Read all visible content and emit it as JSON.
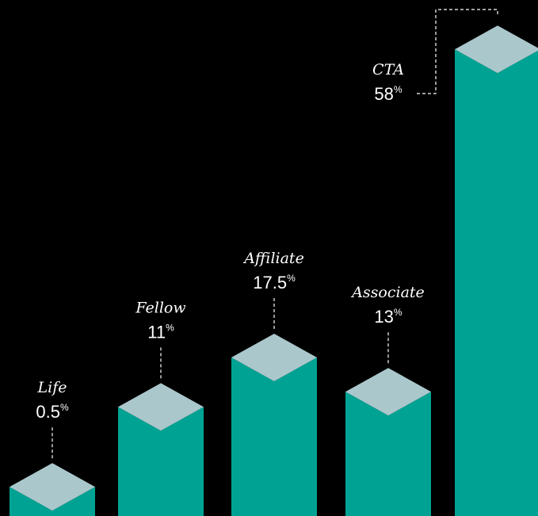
{
  "chart_data": {
    "type": "bar",
    "style": "isometric-3d",
    "title": "",
    "categories": [
      "Life",
      "Fellow",
      "Affiliate",
      "Associate",
      "CTA"
    ],
    "values": [
      0.5,
      11,
      17.5,
      13,
      58
    ],
    "value_labels": [
      "0.5",
      "11",
      "17.5",
      "13",
      "58"
    ],
    "unit": "%",
    "colors": {
      "background": "#000000",
      "front": "#00a393",
      "top": "#aac7cc",
      "thin_edge": "#7a8fbf",
      "text": "#ffffff"
    }
  }
}
